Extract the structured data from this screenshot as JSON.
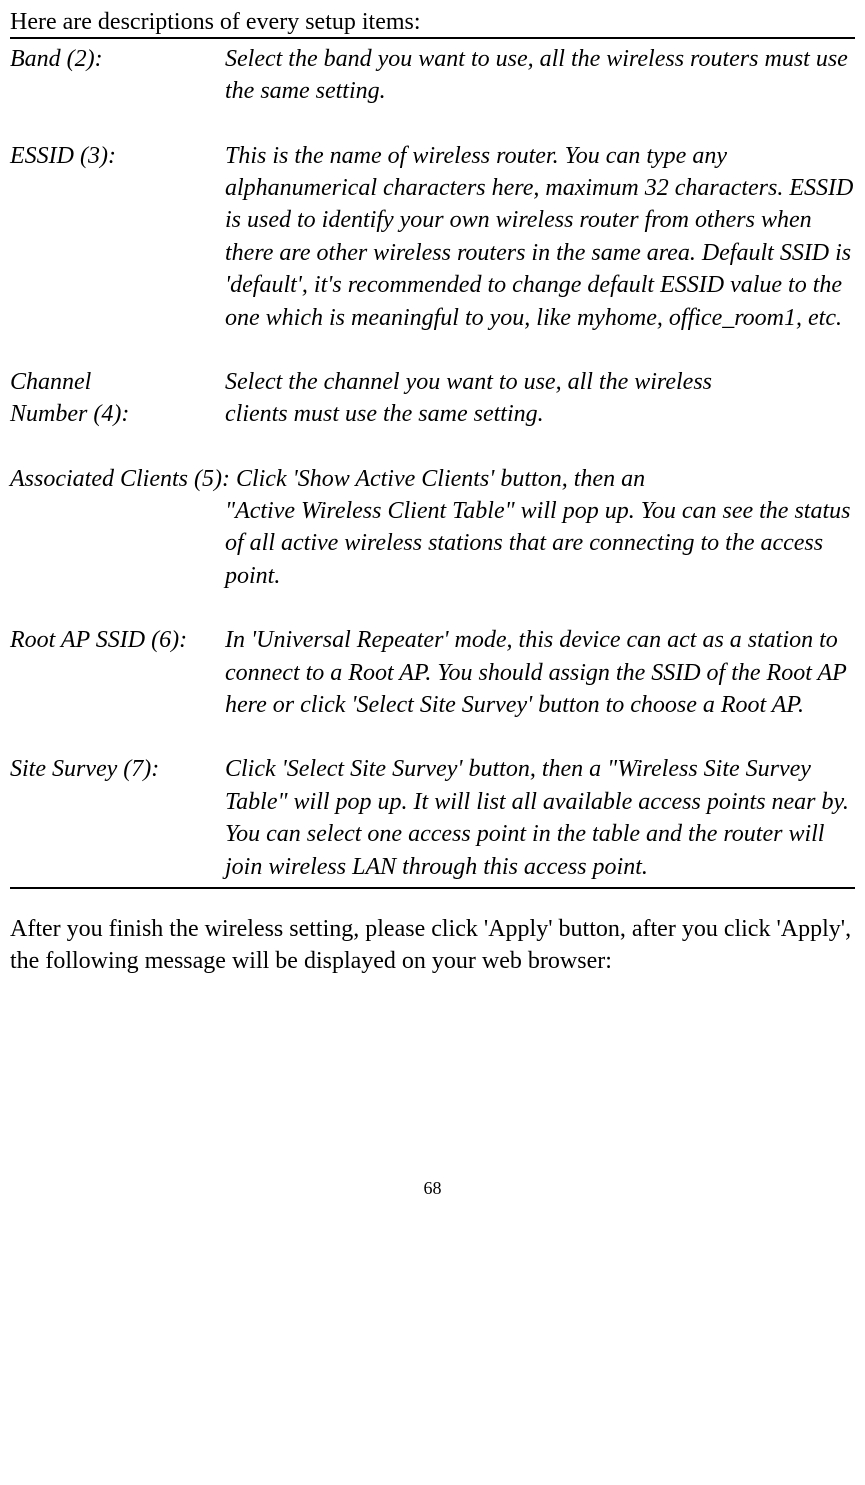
{
  "intro": "Here are descriptions of every setup items:",
  "items": {
    "band": {
      "term": "Band (2):",
      "desc": "Select the band you want to use, all the wireless routers must use the same setting."
    },
    "essid": {
      "term": "ESSID (3):",
      "desc": "This is the name of wireless router. You can type any alphanumerical characters here, maximum 32 characters. ESSID is used to identify your own wireless router from others when there are other wireless routers in the same area. Default SSID is 'default', it's recommended to change default ESSID value to the one which is meaningful to you, like myhome, office_room1, etc."
    },
    "channel": {
      "term_line1": "Channel",
      "term_line2": "Number (4):",
      "desc_line1": "Select the channel you want to use, all the wireless",
      "desc_line2": "clients must use the same setting."
    },
    "assoc": {
      "first_line": "Associated Clients (5): Click 'Show Active Clients' button, then an",
      "cont": "\"Active Wireless Client Table\" will pop up. You can see the status of all active wireless stations that are connecting to the access point."
    },
    "rootap": {
      "term": "Root AP SSID (6):",
      "desc": "In 'Universal Repeater' mode, this device can act as a station to connect to a Root AP. You should assign the SSID of the Root AP here or click 'Select Site Survey' button to choose a Root AP."
    },
    "survey": {
      "term": "Site Survey (7):",
      "desc": "Click 'Select Site Survey' button, then a \"Wireless Site Survey Table\" will pop up. It will list all available access points near by. You can select one access point in the table and the router will join wireless LAN through this access point."
    }
  },
  "after": "After you finish the wireless setting, please click 'Apply' button, after you click 'Apply', the following message will be displayed on your web browser:",
  "page_number": "68"
}
